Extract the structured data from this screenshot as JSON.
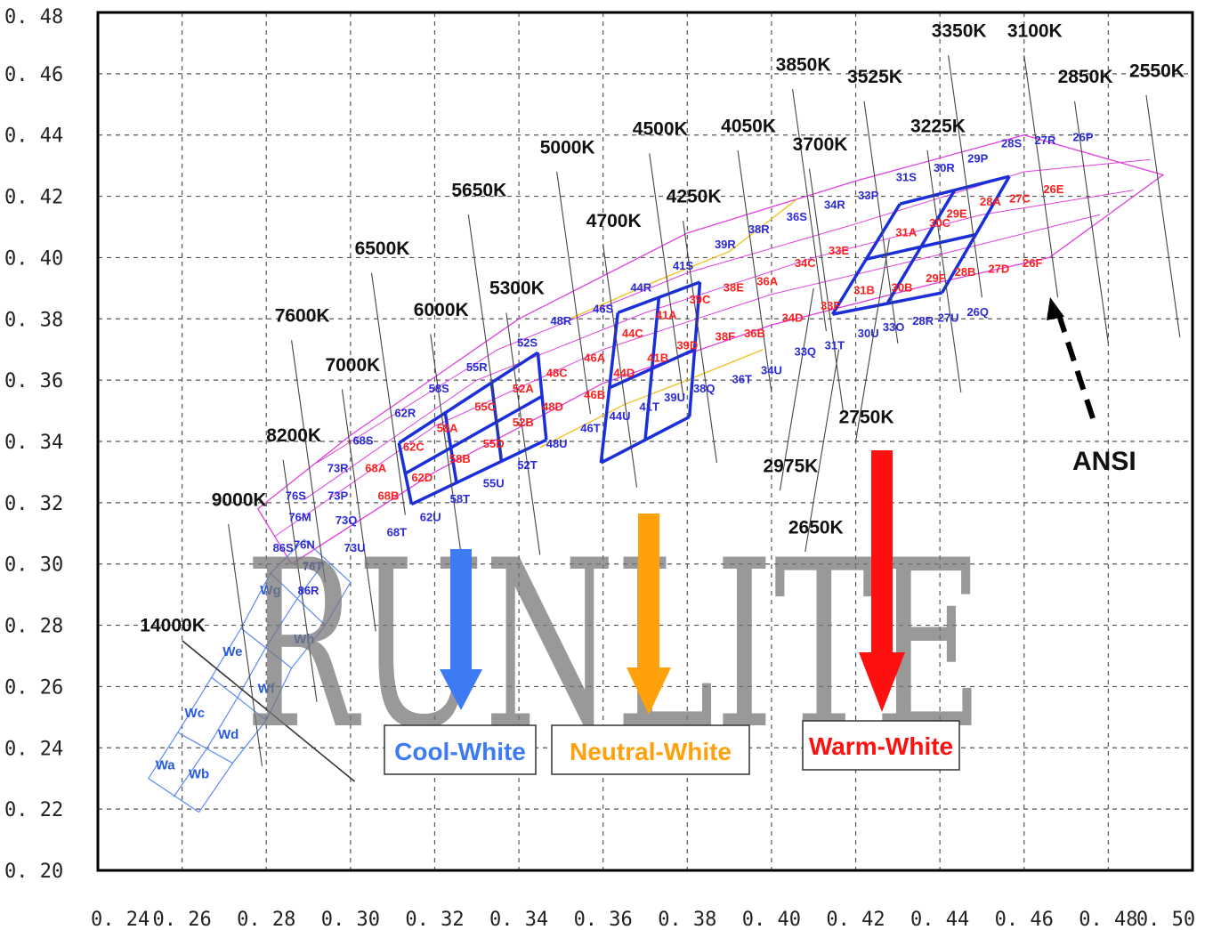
{
  "chart_data": {
    "type": "scatter",
    "title": "",
    "xlabel": "",
    "ylabel": "",
    "xlim": [
      0.24,
      0.5
    ],
    "ylim": [
      0.2,
      0.48
    ],
    "grid": true,
    "x_ticks": [
      "0. 24",
      "0. 26",
      "0. 28",
      "0. 30",
      "0. 32",
      "0. 34",
      "0. 36",
      "0. 38",
      "0. 40",
      "0. 42",
      "0. 44",
      "0. 46",
      "0. 48",
      "0. 50"
    ],
    "y_ticks": [
      "0. 20",
      "0. 22",
      "0. 24",
      "0. 26",
      "0. 28",
      "0. 30",
      "0. 32",
      "0. 34",
      "0. 36",
      "0. 38",
      "0. 40",
      "0. 42",
      "0. 44",
      "0. 46",
      "0. 48"
    ],
    "cct_labels": [
      {
        "text": "14000K",
        "x": 0.25,
        "y": 0.278
      },
      {
        "text": "9000K",
        "x": 0.267,
        "y": 0.319
      },
      {
        "text": "8200K",
        "x": 0.28,
        "y": 0.34
      },
      {
        "text": "7600K",
        "x": 0.282,
        "y": 0.379
      },
      {
        "text": "7000K",
        "x": 0.294,
        "y": 0.363
      },
      {
        "text": "6500K",
        "x": 0.301,
        "y": 0.401
      },
      {
        "text": "6000K",
        "x": 0.315,
        "y": 0.381
      },
      {
        "text": "5650K",
        "x": 0.324,
        "y": 0.42
      },
      {
        "text": "5300K",
        "x": 0.333,
        "y": 0.388
      },
      {
        "text": "5000K",
        "x": 0.345,
        "y": 0.434
      },
      {
        "text": "4700K",
        "x": 0.356,
        "y": 0.41
      },
      {
        "text": "4500K",
        "x": 0.367,
        "y": 0.44
      },
      {
        "text": "4250K",
        "x": 0.375,
        "y": 0.418
      },
      {
        "text": "4050K",
        "x": 0.388,
        "y": 0.441
      },
      {
        "text": "3850K",
        "x": 0.401,
        "y": 0.461
      },
      {
        "text": "3700K",
        "x": 0.405,
        "y": 0.435
      },
      {
        "text": "3525K",
        "x": 0.418,
        "y": 0.457
      },
      {
        "text": "3350K",
        "x": 0.438,
        "y": 0.472
      },
      {
        "text": "3225K",
        "x": 0.433,
        "y": 0.441
      },
      {
        "text": "3100K",
        "x": 0.456,
        "y": 0.472
      },
      {
        "text": "2850K",
        "x": 0.468,
        "y": 0.457
      },
      {
        "text": "2550K",
        "x": 0.485,
        "y": 0.459
      },
      {
        "text": "2750K",
        "x": 0.416,
        "y": 0.346
      },
      {
        "text": "2975K",
        "x": 0.398,
        "y": 0.33
      },
      {
        "text": "2650K",
        "x": 0.404,
        "y": 0.31
      }
    ],
    "bins_blue": [
      {
        "t": "62R",
        "x": 0.313,
        "y": 0.348
      },
      {
        "t": "58S",
        "x": 0.321,
        "y": 0.356
      },
      {
        "t": "55R",
        "x": 0.33,
        "y": 0.363
      },
      {
        "t": "52S",
        "x": 0.342,
        "y": 0.371
      },
      {
        "t": "48R",
        "x": 0.35,
        "y": 0.378
      },
      {
        "t": "46S",
        "x": 0.36,
        "y": 0.382
      },
      {
        "t": "44R",
        "x": 0.369,
        "y": 0.389
      },
      {
        "t": "41S",
        "x": 0.379,
        "y": 0.396
      },
      {
        "t": "39R",
        "x": 0.389,
        "y": 0.403
      },
      {
        "t": "38R",
        "x": 0.397,
        "y": 0.408
      },
      {
        "t": "36S",
        "x": 0.406,
        "y": 0.412
      },
      {
        "t": "34R",
        "x": 0.415,
        "y": 0.416
      },
      {
        "t": "33P",
        "x": 0.423,
        "y": 0.419
      },
      {
        "t": "31S",
        "x": 0.432,
        "y": 0.425
      },
      {
        "t": "30R",
        "x": 0.441,
        "y": 0.428
      },
      {
        "t": "29P",
        "x": 0.449,
        "y": 0.431
      },
      {
        "t": "28S",
        "x": 0.457,
        "y": 0.436
      },
      {
        "t": "27R",
        "x": 0.465,
        "y": 0.437
      },
      {
        "t": "26P",
        "x": 0.474,
        "y": 0.438
      },
      {
        "t": "68S",
        "x": 0.303,
        "y": 0.339
      },
      {
        "t": "73R",
        "x": 0.297,
        "y": 0.33
      },
      {
        "t": "73P",
        "x": 0.297,
        "y": 0.321
      },
      {
        "t": "73Q",
        "x": 0.299,
        "y": 0.313
      },
      {
        "t": "73U",
        "x": 0.301,
        "y": 0.304
      },
      {
        "t": "76S",
        "x": 0.287,
        "y": 0.321
      },
      {
        "t": "76M",
        "x": 0.288,
        "y": 0.314
      },
      {
        "t": "76N",
        "x": 0.289,
        "y": 0.305
      },
      {
        "t": "76T",
        "x": 0.291,
        "y": 0.298
      },
      {
        "t": "86S",
        "x": 0.284,
        "y": 0.304
      },
      {
        "t": "86R",
        "x": 0.29,
        "y": 0.29
      },
      {
        "t": "68T",
        "x": 0.311,
        "y": 0.309
      },
      {
        "t": "62U",
        "x": 0.319,
        "y": 0.314
      },
      {
        "t": "58T",
        "x": 0.326,
        "y": 0.32
      },
      {
        "t": "55U",
        "x": 0.334,
        "y": 0.325
      },
      {
        "t": "52T",
        "x": 0.342,
        "y": 0.331
      },
      {
        "t": "48U",
        "x": 0.349,
        "y": 0.338
      },
      {
        "t": "46T",
        "x": 0.357,
        "y": 0.343
      },
      {
        "t": "44U",
        "x": 0.364,
        "y": 0.347
      },
      {
        "t": "41T",
        "x": 0.371,
        "y": 0.35
      },
      {
        "t": "39U",
        "x": 0.377,
        "y": 0.353
      },
      {
        "t": "38Q",
        "x": 0.384,
        "y": 0.356
      },
      {
        "t": "36T",
        "x": 0.393,
        "y": 0.359
      },
      {
        "t": "34U",
        "x": 0.4,
        "y": 0.362
      },
      {
        "t": "33Q",
        "x": 0.408,
        "y": 0.368
      },
      {
        "t": "31T",
        "x": 0.415,
        "y": 0.37
      },
      {
        "t": "30U",
        "x": 0.423,
        "y": 0.374
      },
      {
        "t": "33O",
        "x": 0.429,
        "y": 0.376
      },
      {
        "t": "28R",
        "x": 0.436,
        "y": 0.378
      },
      {
        "t": "27U",
        "x": 0.442,
        "y": 0.379
      },
      {
        "t": "26Q",
        "x": 0.449,
        "y": 0.381
      }
    ],
    "bins_red": [
      {
        "t": "62C",
        "x": 0.315,
        "y": 0.337
      },
      {
        "t": "58A",
        "x": 0.323,
        "y": 0.343
      },
      {
        "t": "55C",
        "x": 0.332,
        "y": 0.35
      },
      {
        "t": "52A",
        "x": 0.341,
        "y": 0.356
      },
      {
        "t": "48C",
        "x": 0.349,
        "y": 0.361
      },
      {
        "t": "46A",
        "x": 0.358,
        "y": 0.366
      },
      {
        "t": "44C",
        "x": 0.367,
        "y": 0.374
      },
      {
        "t": "41A",
        "x": 0.375,
        "y": 0.38
      },
      {
        "t": "39C",
        "x": 0.383,
        "y": 0.385
      },
      {
        "t": "38E",
        "x": 0.391,
        "y": 0.389
      },
      {
        "t": "36A",
        "x": 0.399,
        "y": 0.391
      },
      {
        "t": "34C",
        "x": 0.408,
        "y": 0.397
      },
      {
        "t": "33E",
        "x": 0.416,
        "y": 0.401
      },
      {
        "t": "31A",
        "x": 0.432,
        "y": 0.407
      },
      {
        "t": "30C",
        "x": 0.44,
        "y": 0.41
      },
      {
        "t": "29E",
        "x": 0.444,
        "y": 0.413
      },
      {
        "t": "28A",
        "x": 0.452,
        "y": 0.417
      },
      {
        "t": "27C",
        "x": 0.459,
        "y": 0.418
      },
      {
        "t": "26E",
        "x": 0.467,
        "y": 0.421
      },
      {
        "t": "68A",
        "x": 0.306,
        "y": 0.33
      },
      {
        "t": "68B",
        "x": 0.309,
        "y": 0.321
      },
      {
        "t": "62D",
        "x": 0.317,
        "y": 0.327
      },
      {
        "t": "58B",
        "x": 0.326,
        "y": 0.333
      },
      {
        "t": "55D",
        "x": 0.334,
        "y": 0.338
      },
      {
        "t": "52B",
        "x": 0.341,
        "y": 0.345
      },
      {
        "t": "48D",
        "x": 0.348,
        "y": 0.35
      },
      {
        "t": "46B",
        "x": 0.358,
        "y": 0.354
      },
      {
        "t": "44D",
        "x": 0.365,
        "y": 0.361
      },
      {
        "t": "41B",
        "x": 0.373,
        "y": 0.366
      },
      {
        "t": "39D",
        "x": 0.38,
        "y": 0.37
      },
      {
        "t": "38F",
        "x": 0.389,
        "y": 0.373
      },
      {
        "t": "36B",
        "x": 0.396,
        "y": 0.374
      },
      {
        "t": "34D",
        "x": 0.405,
        "y": 0.379
      },
      {
        "t": "33F",
        "x": 0.414,
        "y": 0.383
      },
      {
        "t": "31B",
        "x": 0.422,
        "y": 0.388
      },
      {
        "t": "30B",
        "x": 0.431,
        "y": 0.389
      },
      {
        "t": "29F",
        "x": 0.439,
        "y": 0.392
      },
      {
        "t": "28B",
        "x": 0.446,
        "y": 0.394
      },
      {
        "t": "27D",
        "x": 0.454,
        "y": 0.395
      },
      {
        "t": "26F",
        "x": 0.462,
        "y": 0.397
      }
    ],
    "bins_w": [
      {
        "t": "Wa",
        "x": 0.256,
        "y": 0.233
      },
      {
        "t": "Wb",
        "x": 0.264,
        "y": 0.23
      },
      {
        "t": "Wc",
        "x": 0.263,
        "y": 0.25
      },
      {
        "t": "Wd",
        "x": 0.271,
        "y": 0.243
      },
      {
        "t": "We",
        "x": 0.272,
        "y": 0.27
      },
      {
        "t": "Wf",
        "x": 0.28,
        "y": 0.258
      },
      {
        "t": "Wg",
        "x": 0.281,
        "y": 0.29
      },
      {
        "t": "Wh",
        "x": 0.289,
        "y": 0.274
      }
    ],
    "legend": {
      "cool": "Cool-White",
      "neutral": "Neutral-White",
      "warm": "Warm-White"
    },
    "annotation": "ANSI",
    "watermark": "RUNLITE",
    "colors": {
      "cool": "#3d7bf5",
      "neutral": "#ffa10a",
      "warm": "#ff1010",
      "bin_blue": "#2a2ad6",
      "bin_red": "#ff1e1e",
      "pink_grid": "#e040e0",
      "yellow_grid": "#f0c020",
      "w_grid": "#5a8af5",
      "frame": "#000000"
    }
  }
}
